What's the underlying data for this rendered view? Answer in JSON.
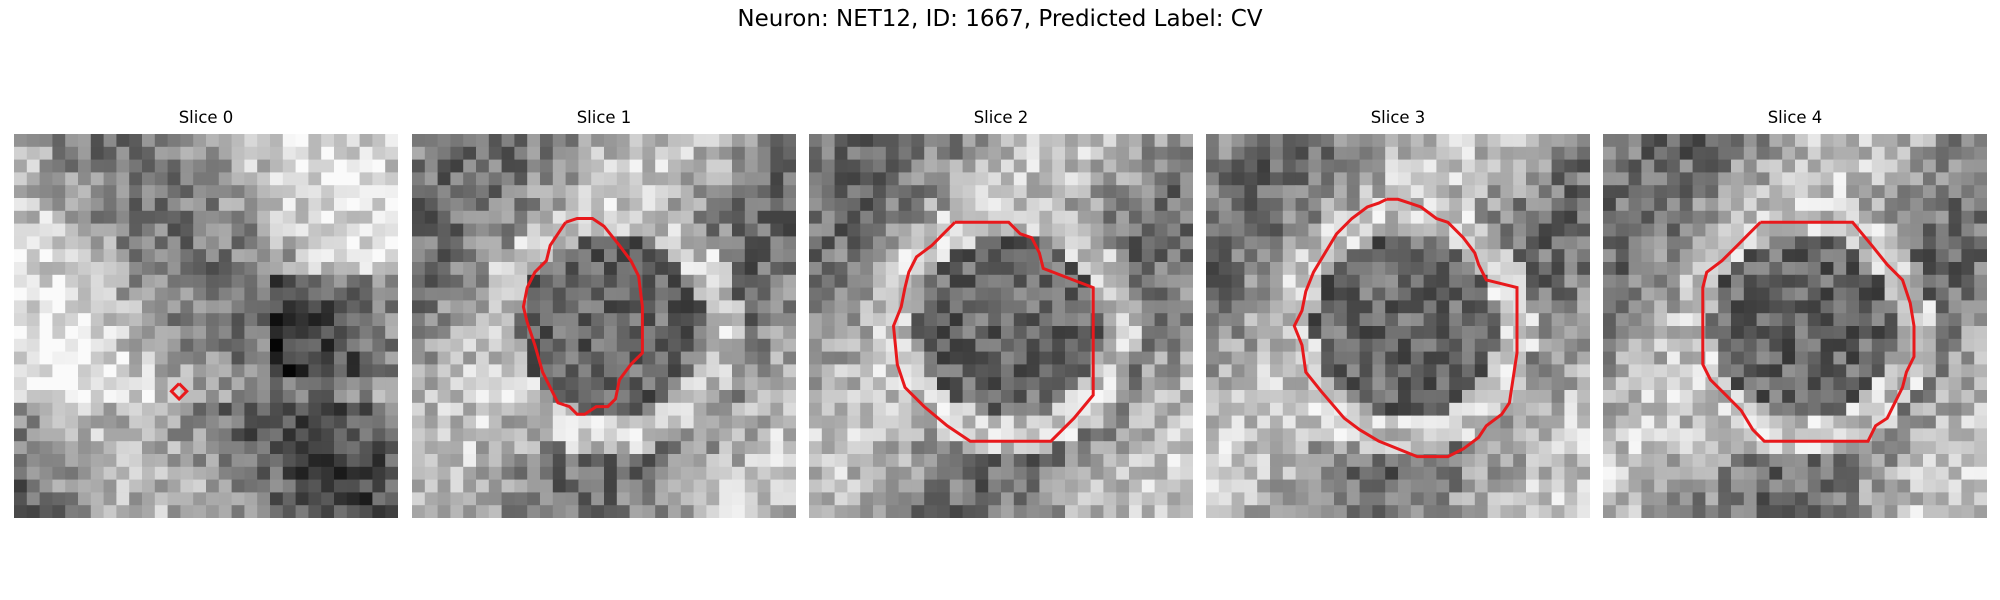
{
  "figure": {
    "title": "Neuron: NET12, ID: 1667, Predicted Label: CV"
  },
  "panels": [
    {
      "title": "Slice 0",
      "seed": 11,
      "style": "membrane",
      "contour": [
        [
          0.43,
          0.65
        ],
        [
          0.45,
          0.67
        ],
        [
          0.43,
          0.69
        ],
        [
          0.41,
          0.67
        ],
        [
          0.43,
          0.65
        ]
      ]
    },
    {
      "title": "Slice 1",
      "seed": 23,
      "style": "ring",
      "contour": [
        [
          0.4,
          0.23
        ],
        [
          0.43,
          0.22
        ],
        [
          0.47,
          0.22
        ],
        [
          0.5,
          0.24
        ],
        [
          0.54,
          0.29
        ],
        [
          0.57,
          0.33
        ],
        [
          0.59,
          0.37
        ],
        [
          0.6,
          0.45
        ],
        [
          0.6,
          0.57
        ],
        [
          0.57,
          0.6
        ],
        [
          0.54,
          0.64
        ],
        [
          0.53,
          0.69
        ],
        [
          0.51,
          0.71
        ],
        [
          0.48,
          0.71
        ],
        [
          0.45,
          0.73
        ],
        [
          0.43,
          0.73
        ],
        [
          0.41,
          0.71
        ],
        [
          0.38,
          0.7
        ],
        [
          0.36,
          0.66
        ],
        [
          0.35,
          0.64
        ],
        [
          0.34,
          0.62
        ],
        [
          0.32,
          0.55
        ],
        [
          0.3,
          0.49
        ],
        [
          0.29,
          0.45
        ],
        [
          0.3,
          0.4
        ],
        [
          0.32,
          0.36
        ],
        [
          0.35,
          0.33
        ],
        [
          0.36,
          0.29
        ],
        [
          0.38,
          0.26
        ],
        [
          0.4,
          0.23
        ]
      ]
    },
    {
      "title": "Slice 2",
      "seed": 37,
      "style": "ring",
      "contour": [
        [
          0.38,
          0.23
        ],
        [
          0.52,
          0.23
        ],
        [
          0.55,
          0.26
        ],
        [
          0.58,
          0.27
        ],
        [
          0.6,
          0.31
        ],
        [
          0.61,
          0.35
        ],
        [
          0.74,
          0.4
        ],
        [
          0.74,
          0.68
        ],
        [
          0.69,
          0.74
        ],
        [
          0.63,
          0.8
        ],
        [
          0.42,
          0.8
        ],
        [
          0.36,
          0.76
        ],
        [
          0.3,
          0.71
        ],
        [
          0.25,
          0.66
        ],
        [
          0.23,
          0.6
        ],
        [
          0.22,
          0.5
        ],
        [
          0.24,
          0.45
        ],
        [
          0.25,
          0.4
        ],
        [
          0.26,
          0.36
        ],
        [
          0.28,
          0.32
        ],
        [
          0.32,
          0.29
        ],
        [
          0.35,
          0.26
        ],
        [
          0.38,
          0.23
        ]
      ]
    },
    {
      "title": "Slice 3",
      "seed": 51,
      "style": "ring",
      "contour": [
        [
          0.47,
          0.17
        ],
        [
          0.5,
          0.17
        ],
        [
          0.53,
          0.18
        ],
        [
          0.56,
          0.19
        ],
        [
          0.6,
          0.22
        ],
        [
          0.63,
          0.23
        ],
        [
          0.67,
          0.27
        ],
        [
          0.7,
          0.31
        ],
        [
          0.71,
          0.34
        ],
        [
          0.73,
          0.38
        ],
        [
          0.81,
          0.4
        ],
        [
          0.81,
          0.57
        ],
        [
          0.79,
          0.7
        ],
        [
          0.77,
          0.73
        ],
        [
          0.73,
          0.76
        ],
        [
          0.71,
          0.79
        ],
        [
          0.67,
          0.82
        ],
        [
          0.63,
          0.84
        ],
        [
          0.55,
          0.84
        ],
        [
          0.5,
          0.82
        ],
        [
          0.45,
          0.8
        ],
        [
          0.4,
          0.77
        ],
        [
          0.36,
          0.74
        ],
        [
          0.3,
          0.67
        ],
        [
          0.26,
          0.62
        ],
        [
          0.25,
          0.55
        ],
        [
          0.23,
          0.5
        ],
        [
          0.25,
          0.46
        ],
        [
          0.26,
          0.41
        ],
        [
          0.28,
          0.36
        ],
        [
          0.31,
          0.31
        ],
        [
          0.34,
          0.26
        ],
        [
          0.38,
          0.22
        ],
        [
          0.42,
          0.19
        ],
        [
          0.45,
          0.18
        ],
        [
          0.47,
          0.17
        ]
      ]
    },
    {
      "title": "Slice 4",
      "seed": 67,
      "style": "ring",
      "contour": [
        [
          0.41,
          0.23
        ],
        [
          0.65,
          0.23
        ],
        [
          0.7,
          0.29
        ],
        [
          0.74,
          0.34
        ],
        [
          0.78,
          0.38
        ],
        [
          0.8,
          0.44
        ],
        [
          0.81,
          0.5
        ],
        [
          0.81,
          0.58
        ],
        [
          0.79,
          0.62
        ],
        [
          0.78,
          0.66
        ],
        [
          0.76,
          0.7
        ],
        [
          0.74,
          0.74
        ],
        [
          0.71,
          0.76
        ],
        [
          0.69,
          0.8
        ],
        [
          0.64,
          0.8
        ],
        [
          0.42,
          0.8
        ],
        [
          0.39,
          0.77
        ],
        [
          0.36,
          0.72
        ],
        [
          0.32,
          0.68
        ],
        [
          0.28,
          0.64
        ],
        [
          0.26,
          0.6
        ],
        [
          0.26,
          0.5
        ],
        [
          0.26,
          0.4
        ],
        [
          0.27,
          0.36
        ],
        [
          0.31,
          0.33
        ],
        [
          0.35,
          0.29
        ],
        [
          0.38,
          0.26
        ],
        [
          0.41,
          0.23
        ]
      ]
    }
  ],
  "colors": {
    "contour": "#e8191c"
  }
}
